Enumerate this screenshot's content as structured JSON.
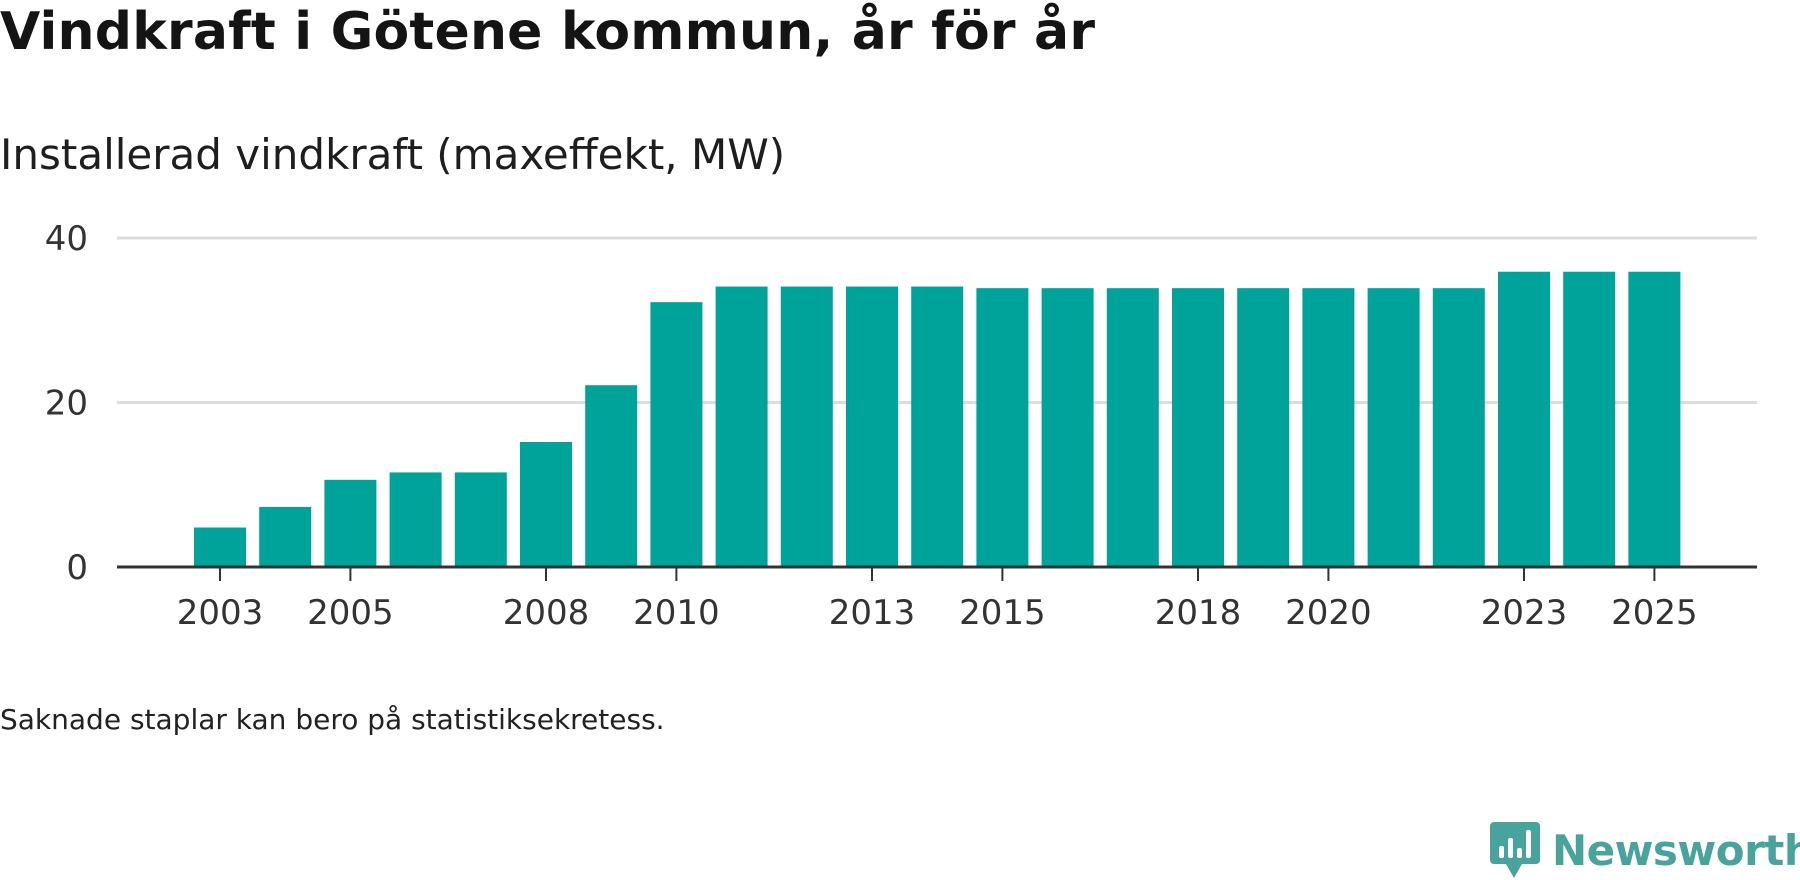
{
  "title": "Vindkraft i Götene kommun, år för år",
  "subtitle": "Installerad vindkraft (maxeffekt, MW)",
  "footnote": "Saknade staplar kan bero på statistiksekretess.",
  "brand": {
    "name": "Newsworthy",
    "color": "#47a39b"
  },
  "colors": {
    "bar": "#00a39a",
    "grid": "#dcdcdc",
    "axis": "#333333",
    "tick_text": "#333333"
  },
  "chart_data": {
    "type": "bar",
    "title": "Vindkraft i Götene kommun, år för år",
    "ylabel": "Installerad vindkraft (maxeffekt, MW)",
    "xlabel": "",
    "categories": [
      "2003",
      "2004",
      "2005",
      "2006",
      "2007",
      "2008",
      "2009",
      "2010",
      "2011",
      "2012",
      "2013",
      "2014",
      "2015",
      "2016",
      "2017",
      "2018",
      "2019",
      "2020",
      "2021",
      "2022",
      "2023",
      "2024",
      "2025"
    ],
    "values": [
      4.8,
      7.3,
      10.6,
      11.5,
      11.5,
      15.2,
      22.1,
      32.2,
      34.1,
      34.1,
      34.1,
      34.1,
      33.9,
      33.9,
      33.9,
      33.9,
      33.9,
      33.9,
      33.9,
      33.9,
      35.9,
      35.9,
      35.9
    ],
    "ylim": [
      0,
      40
    ],
    "yticks": [
      0,
      20,
      40
    ],
    "xtick_labels": [
      "2003",
      "2005",
      "2008",
      "2010",
      "2013",
      "2015",
      "2018",
      "2020",
      "2023",
      "2025"
    ],
    "grid": true,
    "legend": "none"
  }
}
